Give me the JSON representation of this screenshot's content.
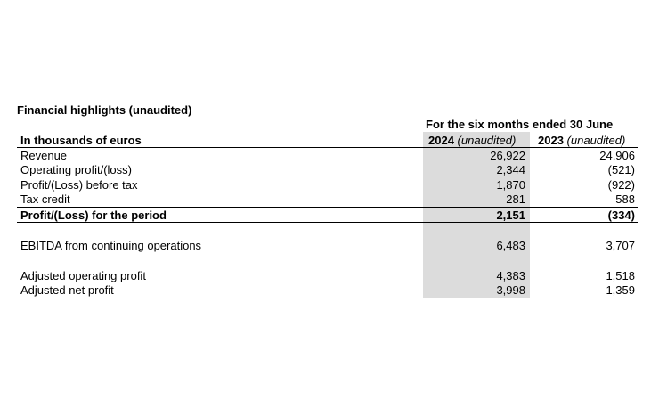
{
  "title": "Financial highlights (unaudited)",
  "period_header": "For the six months ended 30 June",
  "unit_label": "In thousands of euros",
  "columns": [
    {
      "year": "2024",
      "note": "(unaudited)"
    },
    {
      "year": "2023",
      "note": "(unaudited)"
    }
  ],
  "rows": [
    {
      "label": "Revenue",
      "v2024": "26,922",
      "v2023": "24,906"
    },
    {
      "label": "Operating profit/(loss)",
      "v2024": "2,344",
      "v2023": "(521)"
    },
    {
      "label": "Profit/(Loss) before tax",
      "v2024": "1,870",
      "v2023": "(922)"
    },
    {
      "label": "Tax credit",
      "v2024": "281",
      "v2023": "588"
    },
    {
      "label": "Profit/(Loss) for the period",
      "v2024": "2,151",
      "v2023": "(334)"
    },
    {
      "label": "EBITDA from continuing operations",
      "v2024": "6,483",
      "v2023": "3,707"
    },
    {
      "label": "Adjusted operating profit",
      "v2024": "4,383",
      "v2023": "1,518"
    },
    {
      "label": "Adjusted net profit",
      "v2024": "3,998",
      "v2023": "1,359"
    }
  ]
}
